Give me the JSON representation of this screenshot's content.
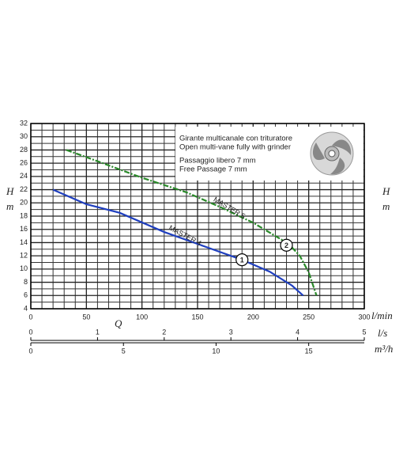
{
  "chart_data": {
    "type": "line",
    "x_label": "Q",
    "y_label": "H",
    "y_unit": "m",
    "x_unit": "l/min",
    "x2_unit": "l/s",
    "x3_unit": "m³/h",
    "xlim": [
      0,
      300
    ],
    "xticks": [
      0,
      50,
      100,
      150,
      200,
      250,
      300
    ],
    "ylim": [
      4,
      32
    ],
    "yticks": [
      4,
      6,
      8,
      10,
      12,
      14,
      16,
      18,
      20,
      22,
      24,
      26,
      28,
      30,
      32
    ],
    "x2lim": [
      0,
      5
    ],
    "x2ticks": [
      0,
      1,
      2,
      3,
      4,
      5
    ],
    "x3lim": [
      0,
      18
    ],
    "x3ticks": [
      0,
      5,
      10,
      15
    ],
    "grid": true,
    "info": [
      "Girante multicanale con trituratore",
      "Open multi-vane fully with grinder",
      "Passaggio libero 7 mm",
      "Free Passage 7 mm"
    ],
    "series": [
      {
        "name": "MASTER 5",
        "color": "#2a8a2a",
        "x": [
          32,
          60,
          100,
          140,
          170,
          200,
          220,
          232,
          242,
          250,
          257
        ],
        "values": [
          28,
          26.3,
          23.8,
          21.6,
          19.4,
          17,
          15,
          13.8,
          12,
          9.5,
          6
        ]
      },
      {
        "name": "MASTER 4",
        "color": "#1f3fbf",
        "x": [
          20,
          50,
          80,
          120,
          160,
          190,
          215,
          235,
          245
        ],
        "values": [
          22,
          19.8,
          18.5,
          15.6,
          13.2,
          11.4,
          9.6,
          7.5,
          6
        ]
      }
    ],
    "points": [
      {
        "label": "1",
        "x": 190,
        "y": 11.4
      },
      {
        "label": "2",
        "x": 230,
        "y": 13.6
      }
    ]
  }
}
